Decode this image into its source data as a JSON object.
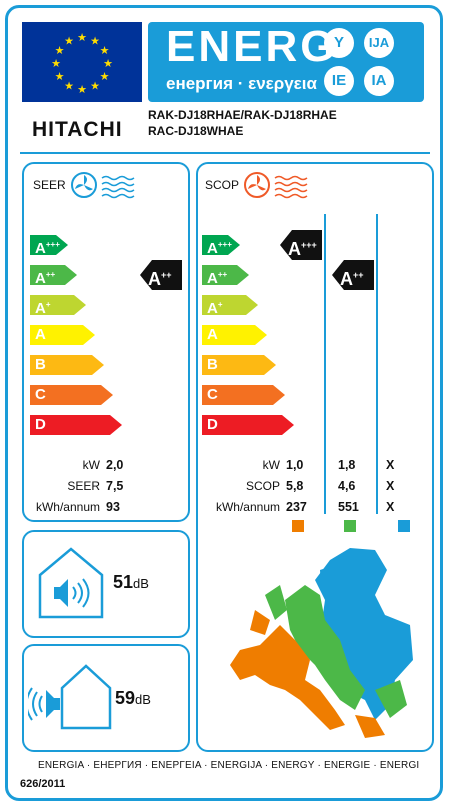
{
  "header": {
    "energy_word": "ENERG",
    "energy_sub": "енергия · ενεργεια",
    "lang_codes": [
      "Y",
      "IJA",
      "IE",
      "IA"
    ],
    "brand": "HITACHI",
    "model_line1": "RAK-DJ18RHAE/RAK-DJ18RHAE",
    "model_line2": "RAC-DJ18WHAE"
  },
  "colors": {
    "accent": "#1a9cd8",
    "eu_blue": "#003399",
    "scale": [
      "#00a651",
      "#4cb848",
      "#bed630",
      "#fff200",
      "#fdb913",
      "#f37021",
      "#ed1c24"
    ],
    "climate_warm": "#ef7d00",
    "climate_average": "#4cb848",
    "climate_cold": "#1a9cd8"
  },
  "scale_letters": [
    "A",
    "A",
    "A",
    "A",
    "B",
    "C",
    "D"
  ],
  "scale_sups": [
    "+++",
    "++",
    "+",
    "",
    "",
    "",
    ""
  ],
  "seer": {
    "title": "SEER",
    "class_letter": "A",
    "class_sup": "++",
    "class_index": 1,
    "labels": [
      "kW",
      "SEER",
      "kWh/annum"
    ],
    "values": [
      "2,0",
      "7,5",
      "93"
    ]
  },
  "scop": {
    "title": "SCOP",
    "ind_warm": {
      "letter": "A",
      "sup": "+++",
      "index": 0
    },
    "ind_avg": {
      "letter": "A",
      "sup": "++",
      "index": 1
    },
    "labels": [
      "kW",
      "SCOP",
      "kWh/annum"
    ],
    "warm_values": [
      "1,0",
      "5,8",
      "237"
    ],
    "avg_values": [
      "1,8",
      "4,6",
      "551"
    ],
    "cold_values": [
      "X",
      "X",
      "X"
    ]
  },
  "noise": {
    "indoor_value": "51",
    "outdoor_value": "59",
    "unit": "dB"
  },
  "footer": {
    "languages": "ENERGIA · ЕНЕРГИЯ · ΕΝΕΡΓΕΙΑ · ENERGIJA · ENERGY · ENERGIE · ENERGI",
    "regulation": "626/2011"
  }
}
